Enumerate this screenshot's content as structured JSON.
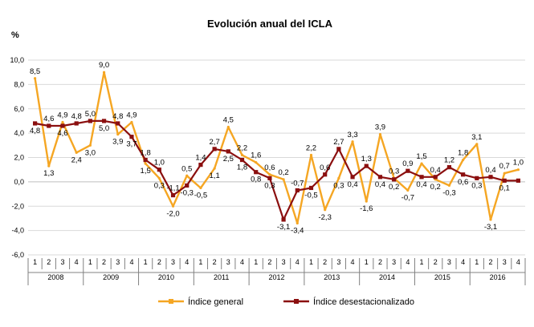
{
  "chart_data": {
    "type": "line",
    "title": "Evolución anual del ICLA",
    "ylabel": "%",
    "xlabel": "",
    "ylim": [
      -6.0,
      10.0
    ],
    "yticks": [
      "-6,0",
      "-4,0",
      "-2,0",
      "0,0",
      "2,0",
      "4,0",
      "6,0",
      "8,0",
      "10,0"
    ],
    "ytick_values": [
      -6,
      -4,
      -2,
      0,
      2,
      4,
      6,
      8,
      10
    ],
    "grid": true,
    "legend_position": "bottom",
    "quarters": [
      "1",
      "2",
      "3",
      "4",
      "1",
      "2",
      "3",
      "4",
      "1",
      "2",
      "3",
      "4",
      "1",
      "2",
      "3",
      "4",
      "1",
      "2",
      "3",
      "4",
      "1",
      "2",
      "3",
      "4",
      "1",
      "2",
      "3",
      "4",
      "1",
      "2",
      "3",
      "4",
      "1",
      "2",
      "3",
      "4"
    ],
    "years": [
      "2008",
      "2009",
      "2010",
      "2011",
      "2012",
      "2013",
      "2014",
      "2015",
      "2016"
    ],
    "series": [
      {
        "name": "Índice general",
        "color": "#f5a623",
        "values": [
          8.5,
          1.3,
          4.9,
          2.4,
          3.0,
          9.0,
          3.9,
          4.9,
          1.5,
          0.3,
          -2.0,
          0.5,
          -0.5,
          1.1,
          4.5,
          2.2,
          1.6,
          0.6,
          0.2,
          -3.4,
          2.2,
          -2.3,
          0.3,
          3.3,
          -1.6,
          3.9,
          0.3,
          -0.7,
          1.5,
          0.2,
          -0.3,
          1.8,
          3.1,
          -3.1,
          0.7,
          1.0
        ],
        "labels": [
          "8,5",
          "1,3",
          "4,9",
          "2,4",
          "3,0",
          "9,0",
          "3,9",
          "4,9",
          "1,5",
          "0,3",
          "-2,0",
          "0,5",
          "-0,5",
          "1,1",
          "4,5",
          "2,2",
          "1,6",
          "0,6",
          "0,2",
          "-3,4",
          "2,2",
          "-2,3",
          "0,3",
          "3,3",
          "-1,6",
          "3,9",
          "0,3",
          "-0,7",
          "1,5",
          "0,2",
          "-0,3",
          "1,8",
          "3,1",
          "-3,1",
          "0,7",
          "1,0"
        ]
      },
      {
        "name": "Índice desestacionalizado",
        "color": "#8b0f0f",
        "values": [
          4.8,
          4.6,
          4.6,
          4.8,
          5.0,
          5.0,
          4.8,
          3.7,
          1.8,
          1.0,
          -1.1,
          -0.3,
          1.4,
          2.7,
          2.5,
          1.8,
          0.8,
          0.3,
          -3.1,
          -0.7,
          -0.5,
          0.6,
          2.7,
          0.4,
          1.3,
          0.4,
          0.2,
          0.9,
          0.4,
          0.4,
          1.2,
          0.6,
          0.3,
          0.4,
          0.1,
          0.1
        ],
        "labels": [
          "4,8",
          "4,6",
          "4,6",
          "4,8",
          "5,0",
          "5,0",
          "4,8",
          "3,7",
          "1,8",
          "1,0",
          "-1,1",
          "-0,3",
          "1,4",
          "2,7",
          "2,5",
          "1,8",
          "0,8",
          "0,3",
          "-3,1",
          "-0,7",
          "-0,5",
          "0,6",
          "2,7",
          "0,4",
          "1,3",
          "0,4",
          "0,2",
          "0,9",
          "0,4",
          "0,4",
          "1,2",
          "0,6",
          "0,3",
          "0,4",
          "0,1",
          ""
        ]
      }
    ]
  }
}
